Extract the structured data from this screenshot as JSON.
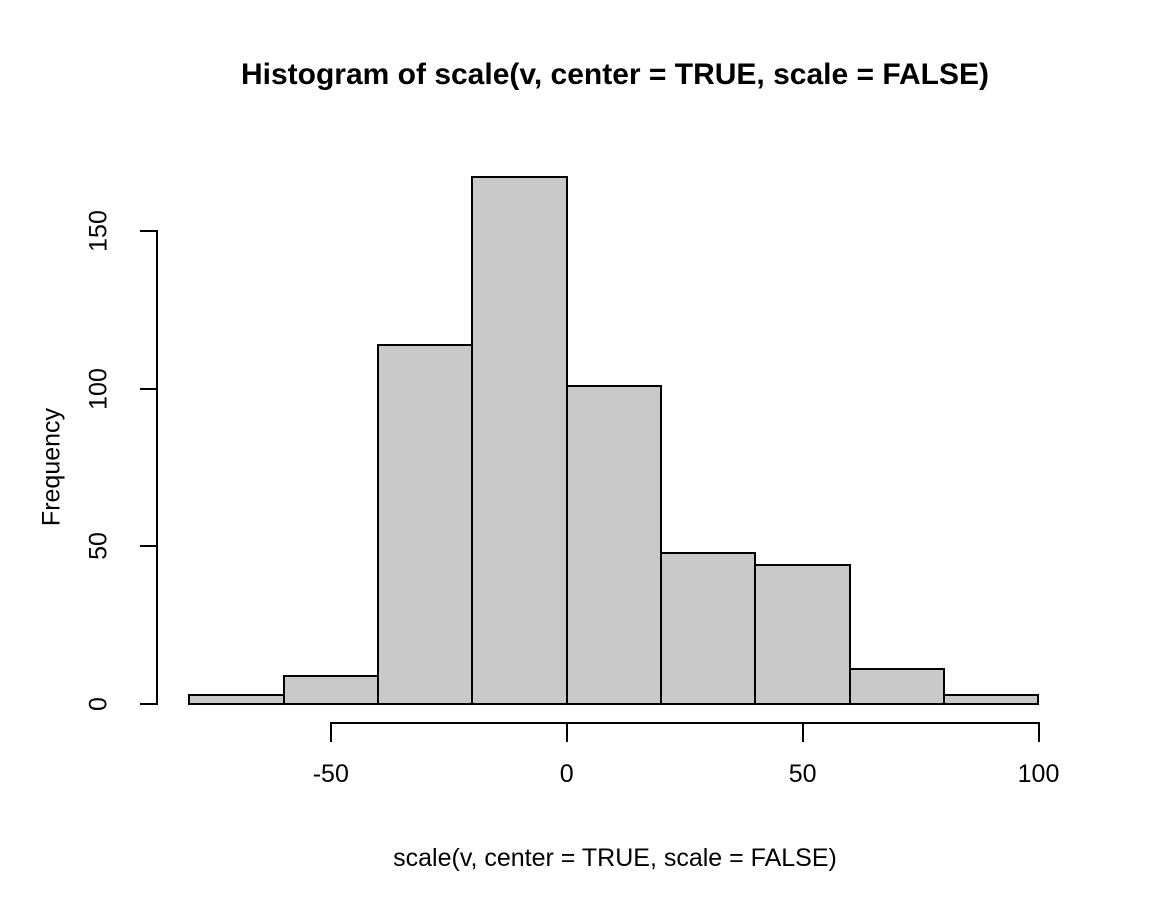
{
  "figure": {
    "background": "#ffffff"
  },
  "chart_data": {
    "type": "histogram",
    "title": "Histogram of scale(v, center = TRUE, scale = FALSE)",
    "xlabel": "scale(v, center = TRUE, scale = FALSE)",
    "ylabel": "Frequency",
    "bin_edges": [
      -80,
      -60,
      -40,
      -20,
      0,
      20,
      40,
      60,
      80,
      100
    ],
    "counts": [
      3,
      9,
      114,
      167,
      101,
      48,
      44,
      11,
      3
    ],
    "x_ticks": [
      -50,
      0,
      50,
      100
    ],
    "x_tick_labels": [
      "-50",
      "0",
      "50",
      "100"
    ],
    "y_ticks": [
      0,
      50,
      100,
      150
    ],
    "y_tick_labels": [
      "0",
      "50",
      "100",
      "150"
    ],
    "xlim": [
      -87,
      107
    ],
    "ylim": [
      0,
      167
    ],
    "grid": false,
    "legend": "none",
    "bar_fill": "#c9c9c9",
    "bar_border": "#000000",
    "axis_color": "#000000",
    "text_color": "#000000"
  }
}
